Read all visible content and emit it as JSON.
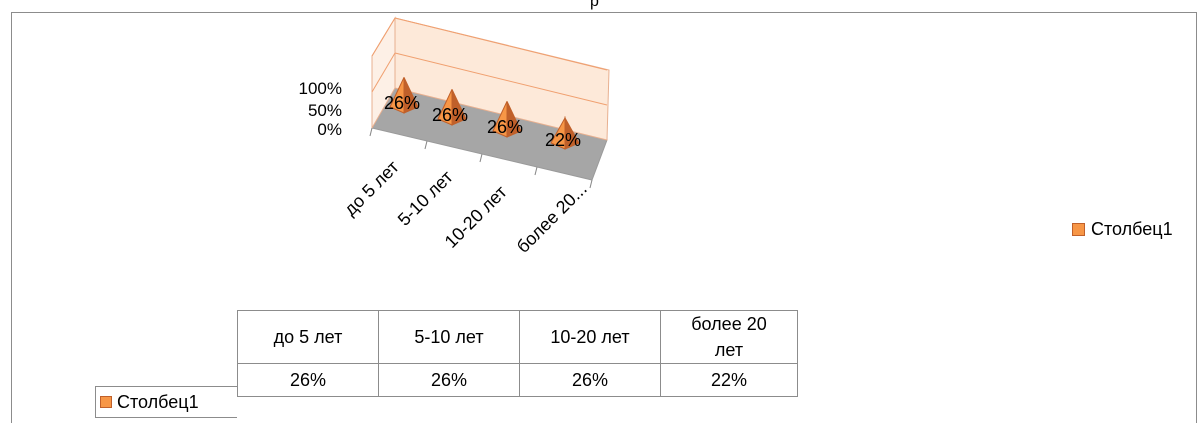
{
  "title_fragment": "р",
  "chart_data": {
    "type": "bar",
    "categories": [
      "до 5 лет",
      "5-10 лет",
      "10-20 лет",
      "более 20 лет"
    ],
    "axis_categories": [
      "до 5 лет",
      "5-10 лет",
      "10-20 лет",
      "более 20..."
    ],
    "series": [
      {
        "name": "Столбец1",
        "values": [
          26,
          26,
          26,
          22
        ]
      }
    ],
    "data_labels": [
      "26%",
      "26%",
      "26%",
      "22%"
    ],
    "yticks": [
      "100%",
      "50%",
      "0%"
    ],
    "ylim": [
      0,
      100
    ],
    "legend": "right",
    "colors": {
      "series": "#f79646",
      "series_dark": "#c0602a",
      "floor": "#a6a6a6",
      "wall": "#fde9d9"
    }
  },
  "table": {
    "headers": [
      "до 5 лет",
      "5-10 лет",
      "10-20 лет",
      "более 20 лет"
    ],
    "header_lines": [
      [
        "до 5 лет"
      ],
      [
        "5-10 лет"
      ],
      [
        "10-20 лет"
      ],
      [
        "более 20",
        "лет"
      ]
    ],
    "row_label": "Столбец1",
    "values": [
      "26%",
      "26%",
      "26%",
      "22%"
    ]
  },
  "legend_label": "Столбец1"
}
